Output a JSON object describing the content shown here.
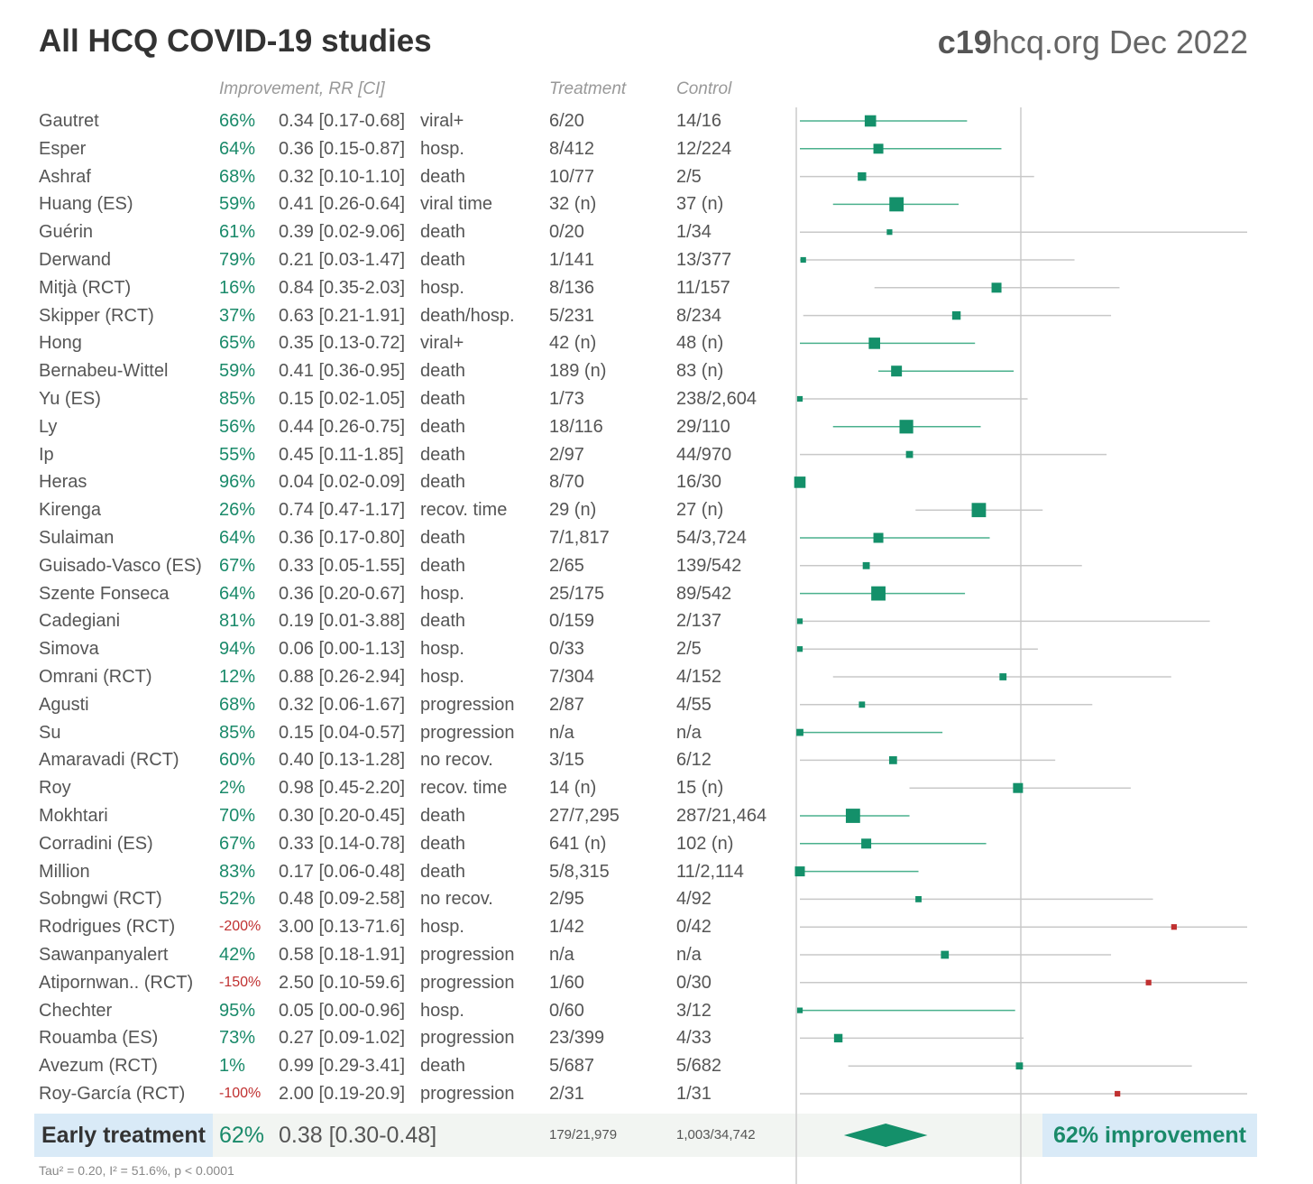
{
  "title": "All HCQ COVID-19 studies",
  "source": {
    "brand_bold": "c19",
    "brand_rest": "hcq.org Dec 2022"
  },
  "headers": {
    "improvement": "Improvement, RR [CI]",
    "treatment": "Treatment",
    "control": "Control"
  },
  "chart_data": {
    "type": "forest",
    "xscale": "log",
    "reference_line": 1,
    "studies": [
      {
        "name": "Gautret",
        "improvement": "66%",
        "rr_text": "0.34 [0.17-0.68]",
        "outcome": "viral+",
        "treatment": "6/20",
        "control": "14/16",
        "rr": 0.34,
        "lo": 0.17,
        "hi": 0.68,
        "weight": 3
      },
      {
        "name": "Esper",
        "improvement": "64%",
        "rr_text": "0.36 [0.15-0.87]",
        "outcome": "hosp.",
        "treatment": "8/412",
        "control": "12/224",
        "rr": 0.36,
        "lo": 0.15,
        "hi": 0.87,
        "weight": 2.5
      },
      {
        "name": "Ashraf",
        "improvement": "68%",
        "rr_text": "0.32 [0.10-1.10]",
        "outcome": "death",
        "treatment": "10/77",
        "control": "2/5",
        "rr": 0.32,
        "lo": 0.1,
        "hi": 1.1,
        "weight": 2
      },
      {
        "name": "Huang (ES)",
        "improvement": "59%",
        "rr_text": "0.41 [0.26-0.64]",
        "outcome": "viral time",
        "treatment": "32 (n)",
        "control": "37 (n)",
        "rr": 0.41,
        "lo": 0.26,
        "hi": 0.64,
        "weight": 4
      },
      {
        "name": "Guérin",
        "improvement": "61%",
        "rr_text": "0.39 [0.02-9.06]",
        "outcome": "death",
        "treatment": "0/20",
        "control": "1/34",
        "rr": 0.39,
        "lo": 0.02,
        "hi": 9.06,
        "weight": 1
      },
      {
        "name": "Derwand",
        "improvement": "79%",
        "rr_text": "0.21 [0.03-1.47]",
        "outcome": "death",
        "treatment": "1/141",
        "control": "13/377",
        "rr": 0.21,
        "lo": 0.03,
        "hi": 1.47,
        "weight": 1
      },
      {
        "name": "Mitjà (RCT)",
        "improvement": "16%",
        "rr_text": "0.84 [0.35-2.03]",
        "outcome": "hosp.",
        "treatment": "8/136",
        "control": "11/157",
        "rr": 0.84,
        "lo": 0.35,
        "hi": 2.03,
        "weight": 2.5
      },
      {
        "name": "Skipper (RCT)",
        "improvement": "37%",
        "rr_text": "0.63 [0.21-1.91]",
        "outcome": "death/hosp.",
        "treatment": "5/231",
        "control": "8/234",
        "rr": 0.63,
        "lo": 0.21,
        "hi": 1.91,
        "weight": 2
      },
      {
        "name": "Hong",
        "improvement": "65%",
        "rr_text": "0.35 [0.13-0.72]",
        "outcome": "viral+",
        "treatment": "42 (n)",
        "control": "48 (n)",
        "rr": 0.35,
        "lo": 0.13,
        "hi": 0.72,
        "weight": 3
      },
      {
        "name": "Bernabeu-Wittel",
        "improvement": "59%",
        "rr_text": "0.41 [0.36-0.95]",
        "outcome": "death",
        "treatment": "189 (n)",
        "control": "83 (n)",
        "rr": 0.41,
        "lo": 0.36,
        "hi": 0.95,
        "weight": 2.8
      },
      {
        "name": "Yu (ES)",
        "improvement": "85%",
        "rr_text": "0.15 [0.02-1.05]",
        "outcome": "death",
        "treatment": "1/73",
        "control": "238/2,604",
        "rr": 0.15,
        "lo": 0.02,
        "hi": 1.05,
        "weight": 1
      },
      {
        "name": "Ly",
        "improvement": "56%",
        "rr_text": "0.44 [0.26-0.75]",
        "outcome": "death",
        "treatment": "18/116",
        "control": "29/110",
        "rr": 0.44,
        "lo": 0.26,
        "hi": 0.75,
        "weight": 3.8
      },
      {
        "name": "Ip",
        "improvement": "55%",
        "rr_text": "0.45 [0.11-1.85]",
        "outcome": "death",
        "treatment": "2/97",
        "control": "44/970",
        "rr": 0.45,
        "lo": 0.11,
        "hi": 1.85,
        "weight": 1.5
      },
      {
        "name": "Heras",
        "improvement": "96%",
        "rr_text": "0.04 [0.02-0.09]",
        "outcome": "death",
        "treatment": "8/70",
        "control": "16/30",
        "rr": 0.04,
        "lo": 0.02,
        "hi": 0.09,
        "weight": 3
      },
      {
        "name": "Kirenga",
        "improvement": "26%",
        "rr_text": "0.74 [0.47-1.17]",
        "outcome": "recov. time",
        "treatment": "29 (n)",
        "control": "27 (n)",
        "rr": 0.74,
        "lo": 0.47,
        "hi": 1.17,
        "weight": 4
      },
      {
        "name": "Sulaiman",
        "improvement": "64%",
        "rr_text": "0.36 [0.17-0.80]",
        "outcome": "death",
        "treatment": "7/1,817",
        "control": "54/3,724",
        "rr": 0.36,
        "lo": 0.17,
        "hi": 0.8,
        "weight": 2.5
      },
      {
        "name": "Guisado-Vasco (ES)",
        "improvement": "67%",
        "rr_text": "0.33 [0.05-1.55]",
        "outcome": "death",
        "treatment": "2/65",
        "control": "139/542",
        "rr": 0.33,
        "lo": 0.05,
        "hi": 1.55,
        "weight": 1.5
      },
      {
        "name": "Szente Fonseca",
        "improvement": "64%",
        "rr_text": "0.36 [0.20-0.67]",
        "outcome": "hosp.",
        "treatment": "25/175",
        "control": "89/542",
        "rr": 0.36,
        "lo": 0.2,
        "hi": 0.67,
        "weight": 4
      },
      {
        "name": "Cadegiani",
        "improvement": "81%",
        "rr_text": "0.19 [0.01-3.88]",
        "outcome": "death",
        "treatment": "0/159",
        "control": "2/137",
        "rr": 0.19,
        "lo": 0.01,
        "hi": 3.88,
        "weight": 1
      },
      {
        "name": "Simova",
        "improvement": "94%",
        "rr_text": "0.06 [0.00-1.13]",
        "outcome": "hosp.",
        "treatment": "0/33",
        "control": "2/5",
        "rr": 0.06,
        "lo": 0.0,
        "hi": 1.13,
        "weight": 1
      },
      {
        "name": "Omrani (RCT)",
        "improvement": "12%",
        "rr_text": "0.88 [0.26-2.94]",
        "outcome": "hosp.",
        "treatment": "7/304",
        "control": "4/152",
        "rr": 0.88,
        "lo": 0.26,
        "hi": 2.94,
        "weight": 1.5
      },
      {
        "name": "Agusti",
        "improvement": "68%",
        "rr_text": "0.32 [0.06-1.67]",
        "outcome": "progression",
        "treatment": "2/87",
        "control": "4/55",
        "rr": 0.32,
        "lo": 0.06,
        "hi": 1.67,
        "weight": 1.2
      },
      {
        "name": "Su",
        "improvement": "85%",
        "rr_text": "0.15 [0.04-0.57]",
        "outcome": "progression",
        "treatment": "n/a",
        "control": "n/a",
        "rr": 0.15,
        "lo": 0.04,
        "hi": 0.57,
        "weight": 1.5
      },
      {
        "name": "Amaravadi (RCT)",
        "improvement": "60%",
        "rr_text": "0.40 [0.13-1.28]",
        "outcome": "no recov.",
        "treatment": "3/15",
        "control": "6/12",
        "rr": 0.4,
        "lo": 0.13,
        "hi": 1.28,
        "weight": 1.8
      },
      {
        "name": "Roy",
        "improvement": "2%",
        "rr_text": "0.98 [0.45-2.20]",
        "outcome": "recov. time",
        "treatment": "14 (n)",
        "control": "15 (n)",
        "rr": 0.98,
        "lo": 0.45,
        "hi": 2.2,
        "weight": 2.5
      },
      {
        "name": "Mokhtari",
        "improvement": "70%",
        "rr_text": "0.30 [0.20-0.45]",
        "outcome": "death",
        "treatment": "27/7,295",
        "control": "287/21,464",
        "rr": 0.3,
        "lo": 0.2,
        "hi": 0.45,
        "weight": 4
      },
      {
        "name": "Corradini (ES)",
        "improvement": "67%",
        "rr_text": "0.33 [0.14-0.78]",
        "outcome": "death",
        "treatment": "641 (n)",
        "control": "102 (n)",
        "rr": 0.33,
        "lo": 0.14,
        "hi": 0.78,
        "weight": 2.5
      },
      {
        "name": "Million",
        "improvement": "83%",
        "rr_text": "0.17 [0.06-0.48]",
        "outcome": "death",
        "treatment": "5/8,315",
        "control": "11/2,114",
        "rr": 0.17,
        "lo": 0.06,
        "hi": 0.48,
        "weight": 2.5
      },
      {
        "name": "Sobngwi (RCT)",
        "improvement": "52%",
        "rr_text": "0.48 [0.09-2.58]",
        "outcome": "no recov.",
        "treatment": "2/95",
        "control": "4/92",
        "rr": 0.48,
        "lo": 0.09,
        "hi": 2.58,
        "weight": 1.2
      },
      {
        "name": "Rodrigues (RCT)",
        "improvement": "-200%",
        "rr_text": "3.00 [0.13-71.6]",
        "outcome": "hosp.",
        "treatment": "1/42",
        "control": "0/42",
        "rr": 3.0,
        "lo": 0.13,
        "hi": 71.6,
        "weight": 1
      },
      {
        "name": "Sawanpanyalert",
        "improvement": "42%",
        "rr_text": "0.58 [0.18-1.91]",
        "outcome": "progression",
        "treatment": "n/a",
        "control": "n/a",
        "rr": 0.58,
        "lo": 0.18,
        "hi": 1.91,
        "weight": 1.8
      },
      {
        "name": "Atipornwan.. (RCT)",
        "improvement": "-150%",
        "rr_text": "2.50 [0.10-59.6]",
        "outcome": "progression",
        "treatment": "1/60",
        "control": "0/30",
        "rr": 2.5,
        "lo": 0.1,
        "hi": 59.6,
        "weight": 1
      },
      {
        "name": "Chechter",
        "improvement": "95%",
        "rr_text": "0.05 [0.00-0.96]",
        "outcome": "hosp.",
        "treatment": "0/60",
        "control": "3/12",
        "rr": 0.05,
        "lo": 0.0,
        "hi": 0.96,
        "weight": 1
      },
      {
        "name": "Rouamba (ES)",
        "improvement": "73%",
        "rr_text": "0.27 [0.09-1.02]",
        "outcome": "progression",
        "treatment": "23/399",
        "control": "4/33",
        "rr": 0.27,
        "lo": 0.09,
        "hi": 1.02,
        "weight": 2
      },
      {
        "name": "Avezum (RCT)",
        "improvement": "1%",
        "rr_text": "0.99 [0.29-3.41]",
        "outcome": "death",
        "treatment": "5/687",
        "control": "5/682",
        "rr": 0.99,
        "lo": 0.29,
        "hi": 3.41,
        "weight": 1.5
      },
      {
        "name": "Roy-García (RCT)",
        "improvement": "-100%",
        "rr_text": "2.00 [0.19-20.9]",
        "outcome": "progression",
        "treatment": "2/31",
        "control": "1/31",
        "rr": 2.0,
        "lo": 0.19,
        "hi": 20.9,
        "weight": 1
      }
    ],
    "summary": {
      "label": "Early treatment",
      "improvement": "62%",
      "rr_text": "0.38 [0.30-0.48]",
      "treatment": "179/21,979",
      "control": "1,003/34,742",
      "rr": 0.38,
      "lo": 0.3,
      "hi": 0.48,
      "badge": "62% improvement"
    },
    "heterogeneity": "Tau² = 0.20, I² = 51.6%, p < 0.0001"
  },
  "colors": {
    "positive": "#14906a",
    "negative": "#c03030",
    "ci_positive": "#4ab08d",
    "ci_gray": "#c8c8c8",
    "axis": "#cccccc"
  }
}
